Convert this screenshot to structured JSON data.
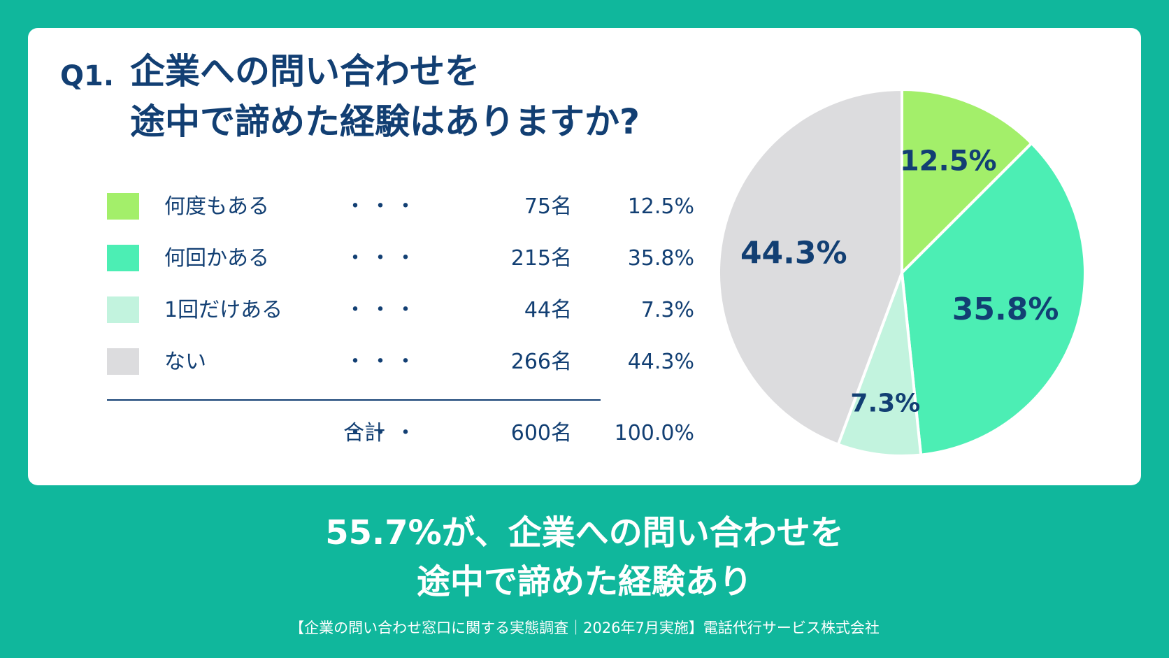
{
  "question": {
    "number": "Q1.",
    "line1": "企業への問い合わせを",
    "line2": "途中で諦めた経験はありますか?"
  },
  "legend": {
    "rows": [
      {
        "label": "何度もある",
        "dots": "・・・",
        "count": "75名",
        "pct": "12.5%",
        "color": "#a3ef6a"
      },
      {
        "label": "何回かある",
        "dots": "・・・",
        "count": "215名",
        "pct": "35.8%",
        "color": "#4ceeb4"
      },
      {
        "label": "1回だけある",
        "dots": "・・・",
        "count": "44名",
        "pct": "7.3%",
        "color": "#c2f3de"
      },
      {
        "label": "ない",
        "dots": "・・・",
        "count": "266名",
        "pct": "44.3%",
        "color": "#dcdcde"
      }
    ],
    "total": {
      "label": "合計",
      "dots": "・・・",
      "count": "600名",
      "pct": "100.0%"
    }
  },
  "chart_data": {
    "type": "pie",
    "categories": [
      "何度もある",
      "何回かある",
      "1回だけある",
      "ない"
    ],
    "values": [
      12.5,
      35.8,
      7.3,
      44.3
    ],
    "labels": [
      "12.5%",
      "35.8%",
      "7.3%",
      "44.3%"
    ],
    "colors": [
      "#a3ef6a",
      "#4ceeb4",
      "#c2f3de",
      "#dcdcde"
    ],
    "title": "",
    "start": "top, clockwise"
  },
  "headline": {
    "line1": "55.7%が、企業への問い合わせを",
    "line2": "途中で諦めた経験あり"
  },
  "footer": "【企業の問い合わせ窓口に関する実態調査｜2026年7月実施】電話代行サービス株式会社"
}
